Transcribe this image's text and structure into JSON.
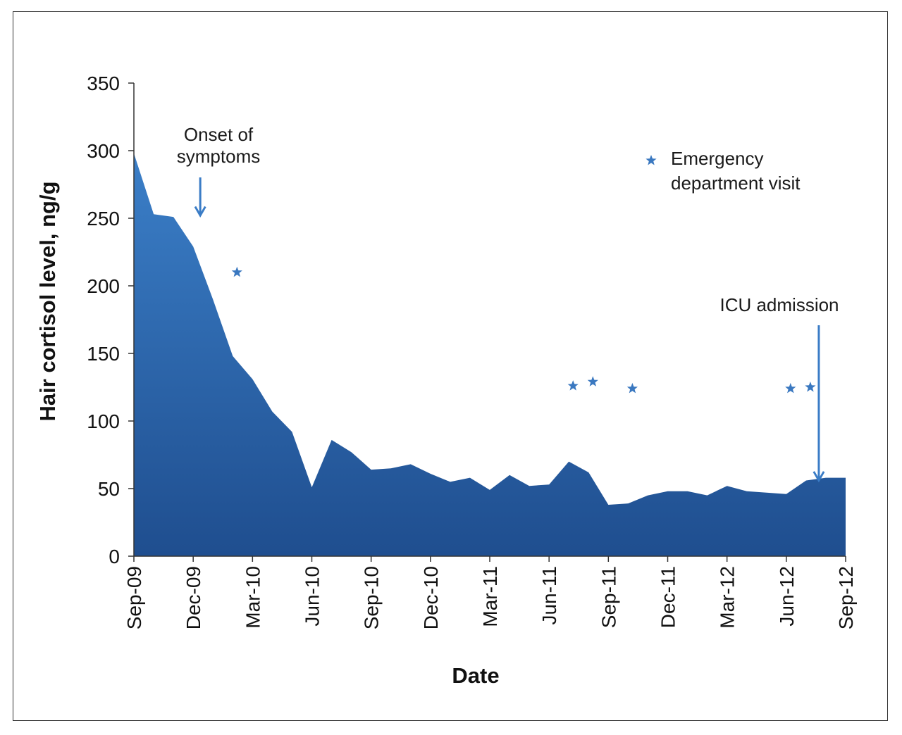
{
  "chart_data": {
    "type": "area",
    "title": "",
    "xlabel": "Date",
    "ylabel": "Hair cortisol level, ng/g",
    "ylim": [
      0,
      350
    ],
    "yticks": [
      0,
      50,
      100,
      150,
      200,
      250,
      300,
      350
    ],
    "xlim": [
      "2009-09",
      "2012-09"
    ],
    "xtick_labels": [
      "Sep-09",
      "Dec-09",
      "Mar-10",
      "Jun-10",
      "Sep-10",
      "Dec-10",
      "Mar-11",
      "Jun-11",
      "Sep-11",
      "Dec-11",
      "Mar-12",
      "Jun-12",
      "Sep-12"
    ],
    "series": [
      {
        "x": [
          "2009-09",
          "2009-10",
          "2009-11",
          "2009-12",
          "2010-01",
          "2010-02",
          "2010-03",
          "2010-04",
          "2010-05",
          "2010-06",
          "2010-07",
          "2010-08",
          "2010-09",
          "2010-10",
          "2010-11",
          "2010-12",
          "2011-01",
          "2011-02",
          "2011-03",
          "2011-04",
          "2011-05",
          "2011-06",
          "2011-07",
          "2011-08",
          "2011-09",
          "2011-10",
          "2011-11",
          "2011-12",
          "2012-01",
          "2012-02",
          "2012-03",
          "2012-04",
          "2012-05",
          "2012-06",
          "2012-07",
          "2012-08",
          "2012-09"
        ],
        "values": [
          298,
          253,
          251,
          229,
          190,
          148,
          131,
          107,
          92,
          51,
          86,
          77,
          64,
          65,
          68,
          61,
          55,
          58,
          49,
          60,
          52,
          53,
          70,
          62,
          38,
          39,
          45,
          48,
          48,
          45,
          52,
          48,
          47,
          46,
          56,
          58,
          58
        ]
      }
    ],
    "ed_visits": [
      {
        "x": "2010-02",
        "y": 210
      },
      {
        "x": "2011-07",
        "y": 126
      },
      {
        "x": "2011-08",
        "y": 129
      },
      {
        "x": "2011-10",
        "y": 124
      },
      {
        "x": "2012-06",
        "y": 124
      },
      {
        "x": "2012-07",
        "y": 125
      }
    ],
    "annotations": [
      {
        "text_lines": [
          "Onset of",
          "symptoms"
        ],
        "x": "2009-12",
        "y": 251
      },
      {
        "text_lines": [
          "ICU admission"
        ],
        "x": "2012-08",
        "y": 55
      }
    ],
    "legend": {
      "label_lines": [
        "Emergency",
        "department visit"
      ],
      "placement": "top-right"
    },
    "colors": {
      "area_top": "#3b7fc8",
      "area_bottom": "#1f4e8f",
      "marker": "#3a78c0",
      "arrow": "#3a7cc6",
      "axis": "#333333"
    }
  }
}
